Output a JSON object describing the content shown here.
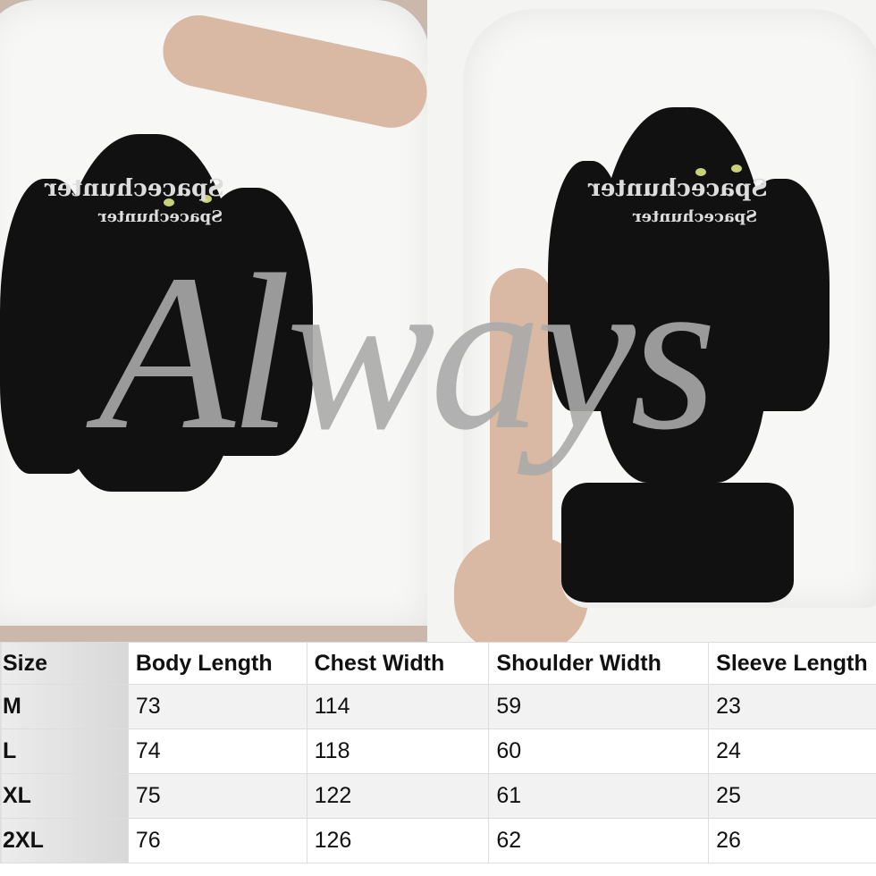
{
  "watermark": "Always",
  "shirt_print": {
    "line1": "Spacechunter",
    "line2": "Spacechunter"
  },
  "size_chart": {
    "headers": [
      "Size",
      "Body Length",
      "Chest Width",
      "Shoulder Width",
      "Sleeve Length"
    ],
    "rows": [
      [
        "M",
        "73",
        "114",
        "59",
        "23"
      ],
      [
        "L",
        "74",
        "118",
        "60",
        "24"
      ],
      [
        "XL",
        "75",
        "122",
        "61",
        "25"
      ],
      [
        "2XL",
        "76",
        "126",
        "62",
        "26"
      ]
    ]
  }
}
